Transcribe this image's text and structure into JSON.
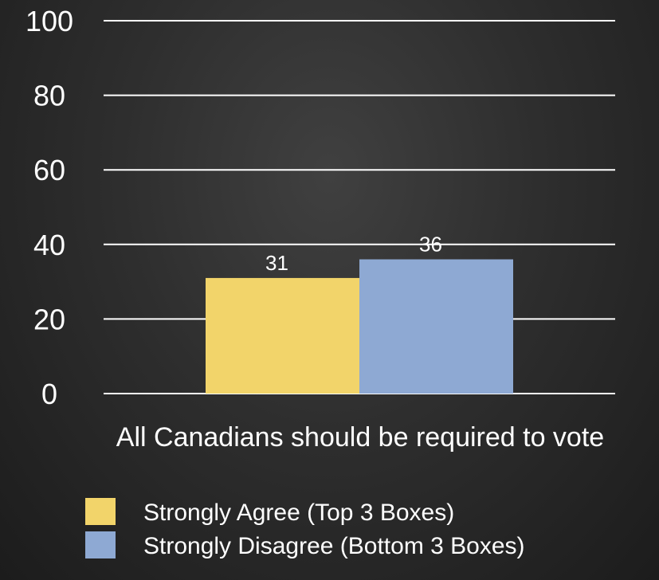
{
  "chart_data": {
    "type": "bar",
    "categories": [
      "All Canadians should be required to vote"
    ],
    "series": [
      {
        "name": "Strongly Agree (Top 3 Boxes)",
        "values": [
          31
        ],
        "color": "#f2d46a"
      },
      {
        "name": "Strongly Disagree (Bottom 3 Boxes)",
        "values": [
          36
        ],
        "color": "#8ea9d3"
      }
    ],
    "data_labels": [
      "31",
      "36"
    ],
    "yticks": [
      "0",
      "20",
      "40",
      "60",
      "80",
      "100"
    ],
    "ylim": [
      0,
      100
    ],
    "grid": true,
    "legend_position": "bottom"
  }
}
